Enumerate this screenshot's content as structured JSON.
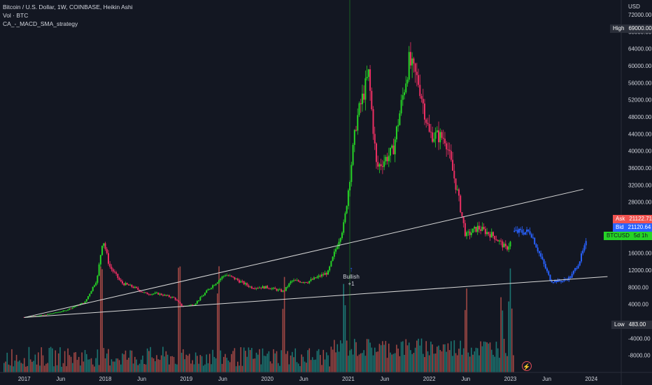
{
  "legend": {
    "line1": "Bitcoin / U.S. Dollar, 1W, COINBASE, Heikin Ashi",
    "line2": "Vol · BTC",
    "line3": "CA_-_MACD_SMA_strategy"
  },
  "price_tags": {
    "high_label": "High",
    "high_value": "69000.00",
    "ask_label": "Ask",
    "ask_value": "21122.71",
    "bid_label": "Bid",
    "bid_value": "21120.64",
    "symbol_label": "BTCUSD",
    "symbol_value": "5d 1h",
    "low_label": "Low",
    "low_value": "483.00"
  },
  "signal": {
    "text": "Bullish",
    "count": "+1"
  },
  "colors": {
    "bg": "#131722",
    "up": "#26d426",
    "down": "#ec2f63",
    "dashed": "#2962ff",
    "vol_up": "#1f8f87",
    "vol_down": "#c2544e",
    "trendline": "#d8d8d8",
    "text": "#d1d4dc"
  },
  "chart_data": {
    "type": "bar",
    "title": "Bitcoin / U.S. Dollar, 1W, COINBASE, Heikin Ashi",
    "x_ticks": [
      "2017",
      "Jun",
      "2018",
      "Jun",
      "2019",
      "Jun",
      "2020",
      "Jun",
      "2021",
      "Jun",
      "2022",
      "Jun",
      "2023",
      "Jun",
      "2024"
    ],
    "y_price_ticks": [
      72000,
      68000,
      64000,
      60000,
      56000,
      52000,
      48000,
      44000,
      40000,
      36000,
      32000,
      28000,
      24000,
      20000,
      16000,
      12000,
      8000,
      4000
    ],
    "y_price_tick_labels": [
      "72000.00",
      "68000.00",
      "64000.00",
      "60000.00",
      "56000.00",
      "52000.00",
      "48000.00",
      "44000.00",
      "40000.00",
      "36000.00",
      "32000.00",
      "28000.00",
      "24000.00",
      "20000.00",
      "16000.00",
      "12000.00",
      "8000.00",
      "4000.00"
    ],
    "y_volume_tick_labels": [
      "-4000.00",
      "-8000.00"
    ],
    "y_volume_ticks": [
      -4000,
      -8000
    ],
    "ylim": [
      -10000,
      74000
    ],
    "grid": false,
    "series": [
      {
        "kind": "candles",
        "x": [
          2017.0,
          2017.25,
          2017.5,
          2017.75,
          2017.9,
          2017.97,
          2018.05,
          2018.2,
          2018.35,
          2018.5,
          2018.65,
          2018.85,
          2018.95,
          2019.1,
          2019.3,
          2019.48,
          2019.6,
          2019.8,
          2020.0,
          2020.2,
          2020.3,
          2020.5,
          2020.75,
          2020.95,
          2021.1,
          2021.25,
          2021.35,
          2021.55,
          2021.75,
          2021.87,
          2022.0,
          2022.2,
          2022.35,
          2022.45,
          2022.6,
          2022.8,
          2022.95,
          2023.0
        ],
        "close": [
          1000,
          1500,
          2500,
          4500,
          10000,
          19500,
          13000,
          9000,
          8000,
          6500,
          6500,
          5500,
          3500,
          4000,
          8000,
          11000,
          10000,
          8000,
          8000,
          7000,
          9500,
          9300,
          11500,
          23000,
          47000,
          58000,
          36000,
          40000,
          61000,
          56000,
          44000,
          43000,
          30000,
          20000,
          22000,
          20000,
          17000,
          18500
        ]
      },
      {
        "kind": "candles-dashed",
        "x": [
          2023.05,
          2023.25,
          2023.4,
          2023.5,
          2023.65,
          2023.75,
          2023.85,
          2023.95
        ],
        "close": [
          21000,
          21000,
          14000,
          9500,
          9500,
          10500,
          14000,
          19000
        ]
      }
    ],
    "trendlines": [
      {
        "x": [
          2017.0,
          2023.9
        ],
        "y": [
          900,
          31000
        ]
      },
      {
        "x": [
          2017.0,
          2024.2
        ],
        "y": [
          900,
          10500
        ]
      }
    ],
    "volume": {
      "peaks_x": [
        2017.95,
        2018.92,
        2019.4,
        2020.2,
        2020.95,
        2022.45,
        2022.9,
        2023.0
      ],
      "peaks_y": [
        -1000,
        -900,
        -3000,
        -500,
        -2500,
        -1200,
        1500,
        2000
      ]
    }
  }
}
